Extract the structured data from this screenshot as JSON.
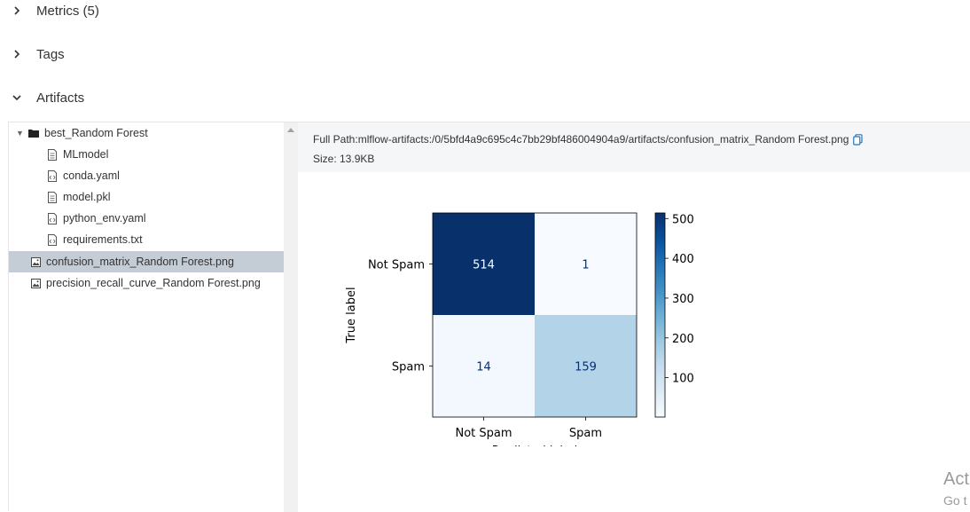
{
  "sections": [
    {
      "label": "Metrics (5)",
      "expanded": false
    },
    {
      "label": "Tags",
      "expanded": false
    },
    {
      "label": "Artifacts",
      "expanded": true
    }
  ],
  "tree": {
    "items": [
      {
        "label": "best_Random Forest",
        "type": "folder",
        "expanded": true,
        "level": 0
      },
      {
        "label": "MLmodel",
        "type": "file",
        "level": 1
      },
      {
        "label": "conda.yaml",
        "type": "code-file",
        "level": 1
      },
      {
        "label": "model.pkl",
        "type": "file",
        "level": 1
      },
      {
        "label": "python_env.yaml",
        "type": "code-file",
        "level": 1
      },
      {
        "label": "requirements.txt",
        "type": "code-file",
        "level": 1
      },
      {
        "label": "confusion_matrix_Random Forest.png",
        "type": "image-file",
        "level": 0,
        "selected": true
      },
      {
        "label": "precision_recall_curve_Random Forest.png",
        "type": "image-file",
        "level": 0
      }
    ]
  },
  "viewer": {
    "full_path_label": "Full Path:",
    "full_path": "mlflow-artifacts:/0/5bfd4a9c695c4c7bb29bf486004904a9/artifacts/confusion_matrix_Random Forest.png",
    "size_label": "Size: 13.9KB"
  },
  "chart_data": {
    "type": "heatmap",
    "row_labels": [
      "Not Spam",
      "Spam"
    ],
    "col_labels": [
      "Not Spam",
      "Spam"
    ],
    "values": [
      [
        514,
        1
      ],
      [
        14,
        159
      ]
    ],
    "ylabel": "True label",
    "xlabel": "Predicted label",
    "colorbar_ticks": [
      500,
      400,
      300,
      200,
      100
    ],
    "colorbar_range": [
      1,
      514
    ],
    "colormap": "Blues",
    "colors": {
      "dark": "#08306b",
      "light": "#f7fbff",
      "text_dark_bg": "#ffffff",
      "text_light_bg": "#08306b"
    }
  },
  "watermark": {
    "line1": "Act",
    "line2": "Go t"
  }
}
